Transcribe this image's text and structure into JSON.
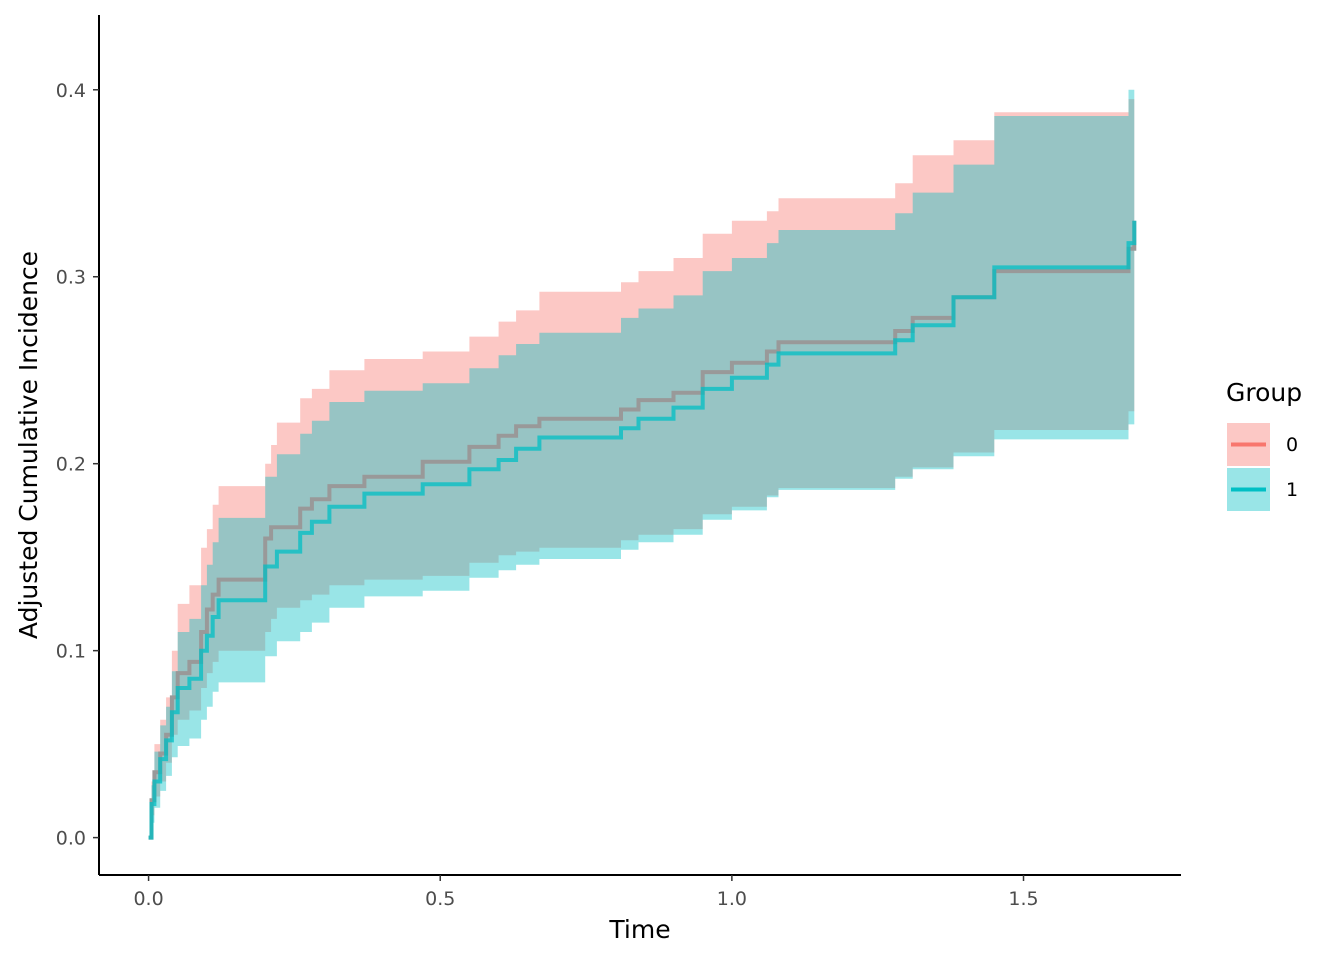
{
  "chart_data": {
    "type": "line",
    "title": "",
    "xlabel": "Time",
    "ylabel": "Adjusted Cumulative Incidence",
    "xlim": [
      -0.085,
      1.77
    ],
    "ylim": [
      -0.02,
      0.44
    ],
    "x_ticks": [
      0.0,
      0.5,
      1.0,
      1.5
    ],
    "x_tick_labels": [
      "0.0",
      "0.5",
      "1.0",
      "1.5"
    ],
    "y_ticks": [
      0.0,
      0.1,
      0.2,
      0.3,
      0.4
    ],
    "y_tick_labels": [
      "0.0",
      "0.1",
      "0.2",
      "0.3",
      "0.4"
    ],
    "grid": false,
    "legend": {
      "title": "Group",
      "position": "right"
    },
    "series": [
      {
        "name": "0",
        "line_color": "#999999",
        "band_color": "#F8766D",
        "x": [
          0.0,
          0.005,
          0.01,
          0.02,
          0.03,
          0.04,
          0.05,
          0.07,
          0.09,
          0.1,
          0.11,
          0.12,
          0.2,
          0.21,
          0.22,
          0.26,
          0.28,
          0.31,
          0.37,
          0.47,
          0.55,
          0.6,
          0.63,
          0.67,
          0.81,
          0.84,
          0.9,
          0.95,
          1.0,
          1.06,
          1.08,
          1.28,
          1.31,
          1.38,
          1.45,
          1.68,
          1.69
        ],
        "y": [
          0.0,
          0.02,
          0.035,
          0.045,
          0.055,
          0.075,
          0.088,
          0.094,
          0.11,
          0.122,
          0.13,
          0.138,
          0.16,
          0.166,
          0.166,
          0.176,
          0.181,
          0.188,
          0.193,
          0.201,
          0.209,
          0.215,
          0.22,
          0.224,
          0.229,
          0.234,
          0.238,
          0.249,
          0.254,
          0.26,
          0.265,
          0.271,
          0.278,
          0.289,
          0.303,
          0.315,
          0.33
        ],
        "lower": [
          0.0,
          0.012,
          0.022,
          0.03,
          0.04,
          0.055,
          0.063,
          0.068,
          0.08,
          0.088,
          0.094,
          0.1,
          0.11,
          0.117,
          0.123,
          0.127,
          0.13,
          0.135,
          0.138,
          0.14,
          0.147,
          0.151,
          0.153,
          0.155,
          0.159,
          0.162,
          0.165,
          0.173,
          0.177,
          0.183,
          0.187,
          0.193,
          0.198,
          0.206,
          0.218,
          0.228,
          0.238
        ],
        "upper": [
          0.0,
          0.03,
          0.05,
          0.063,
          0.075,
          0.1,
          0.125,
          0.135,
          0.155,
          0.165,
          0.178,
          0.188,
          0.2,
          0.21,
          0.222,
          0.235,
          0.24,
          0.25,
          0.256,
          0.26,
          0.268,
          0.276,
          0.282,
          0.292,
          0.297,
          0.303,
          0.31,
          0.323,
          0.33,
          0.335,
          0.342,
          0.35,
          0.365,
          0.373,
          0.388,
          0.395,
          0.4
        ]
      },
      {
        "name": "1",
        "line_color": "#00BFC4",
        "band_color": "#00BFC4",
        "x": [
          0.0,
          0.005,
          0.01,
          0.02,
          0.03,
          0.04,
          0.05,
          0.07,
          0.09,
          0.1,
          0.11,
          0.12,
          0.2,
          0.22,
          0.26,
          0.28,
          0.31,
          0.37,
          0.47,
          0.55,
          0.6,
          0.63,
          0.67,
          0.81,
          0.84,
          0.9,
          0.95,
          1.0,
          1.06,
          1.08,
          1.28,
          1.31,
          1.38,
          1.45,
          1.68,
          1.69
        ],
        "y": [
          0.0,
          0.018,
          0.03,
          0.042,
          0.052,
          0.067,
          0.08,
          0.085,
          0.1,
          0.108,
          0.118,
          0.127,
          0.145,
          0.153,
          0.163,
          0.169,
          0.177,
          0.184,
          0.189,
          0.197,
          0.202,
          0.208,
          0.214,
          0.219,
          0.224,
          0.23,
          0.24,
          0.246,
          0.253,
          0.259,
          0.266,
          0.274,
          0.289,
          0.305,
          0.318,
          0.33
        ],
        "lower": [
          0.0,
          0.008,
          0.016,
          0.025,
          0.033,
          0.043,
          0.049,
          0.053,
          0.063,
          0.07,
          0.078,
          0.083,
          0.097,
          0.105,
          0.11,
          0.115,
          0.123,
          0.129,
          0.132,
          0.139,
          0.143,
          0.146,
          0.149,
          0.154,
          0.158,
          0.162,
          0.17,
          0.175,
          0.182,
          0.186,
          0.192,
          0.197,
          0.204,
          0.213,
          0.221,
          0.23
        ],
        "upper": [
          0.0,
          0.028,
          0.046,
          0.06,
          0.07,
          0.089,
          0.11,
          0.117,
          0.135,
          0.146,
          0.158,
          0.171,
          0.193,
          0.205,
          0.216,
          0.223,
          0.233,
          0.239,
          0.243,
          0.251,
          0.258,
          0.264,
          0.27,
          0.278,
          0.283,
          0.29,
          0.303,
          0.31,
          0.318,
          0.325,
          0.334,
          0.345,
          0.36,
          0.386,
          0.4,
          0.41
        ]
      }
    ]
  }
}
